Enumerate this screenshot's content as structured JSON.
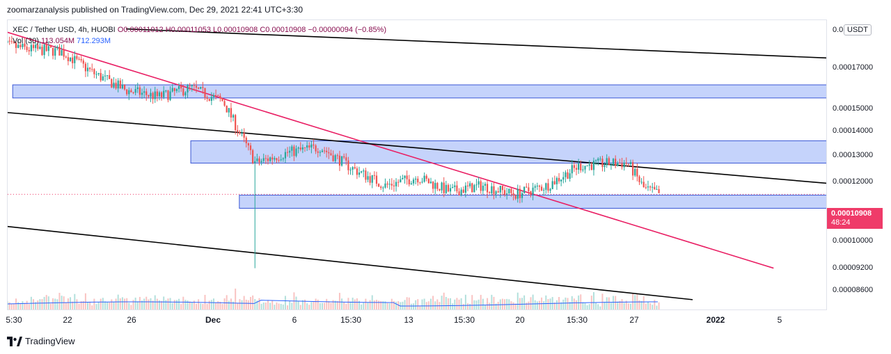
{
  "header": {
    "publisher_text": "zoomarzanalysis published on TradingView.com, Dec 29, 2021 22:41 UTC+3:30"
  },
  "legend": {
    "symbol": "XEC / Tether USD, 4h, HUOBI",
    "open": "O0.00011012",
    "high": "H0.00011053",
    "low": "L0.00010908",
    "close": "C0.00010908",
    "change": "−0.00000094 (−0.85%)",
    "vol_label": "Vol (30)",
    "vol_value": "113.054M",
    "vol_ma": "712.293M"
  },
  "price_axis": {
    "currency": "USDT",
    "labels": [
      "0.00017000",
      "0.00015000",
      "0.00014000",
      "0.00013000",
      "0.00012000",
      "0.00010000",
      "0.00009200",
      "0.00008600"
    ],
    "top_label": "0.0"
  },
  "last_price": {
    "value": "0.00010908",
    "countdown": "48:24"
  },
  "time_axis": {
    "labels": [
      "5:30",
      "22",
      "26",
      "Dec",
      "6",
      "15:30",
      "13",
      "15:30",
      "20",
      "15:30",
      "27",
      "2022",
      "5"
    ]
  },
  "footer": {
    "brand": "TradingView"
  },
  "colors": {
    "up": "#26a69a",
    "down": "#ef5350",
    "wick": "#131722",
    "zone_fill": "#c5d3fb",
    "zone_border": "#3a57d6",
    "trend_pink": "#e91e63",
    "trend_black": "#000000",
    "volume_ma": "#2962ff",
    "last_price_box": "#ef3b69"
  },
  "chart_data": {
    "type": "candlestick",
    "symbol": "XEC / Tether USD",
    "timeframe": "4h",
    "exchange": "HUOBI",
    "x_ticks": [
      "22",
      "26",
      "Dec",
      "6",
      "15:30",
      "13",
      "15:30",
      "20",
      "15:30",
      "27",
      "2022",
      "5"
    ],
    "y_scale": "log",
    "close_path": [
      {
        "date": "2021-11-18",
        "close": 0.000173
      },
      {
        "date": "2021-11-20",
        "close": 0.00017
      },
      {
        "date": "2021-11-22",
        "close": 0.000169
      },
      {
        "date": "2021-11-24",
        "close": 0.000158
      },
      {
        "date": "2021-11-26",
        "close": 0.00015
      },
      {
        "date": "2021-11-28",
        "close": 0.000147
      },
      {
        "date": "2021-11-30",
        "close": 0.000151
      },
      {
        "date": "2021-12-02",
        "close": 0.000145
      },
      {
        "date": "2021-12-04",
        "close": 0.00012
      },
      {
        "date": "2021-12-06",
        "close": 0.000124
      },
      {
        "date": "2021-12-08",
        "close": 0.000126
      },
      {
        "date": "2021-12-10",
        "close": 0.000118
      },
      {
        "date": "2021-12-12",
        "close": 0.000112
      },
      {
        "date": "2021-12-14",
        "close": 0.000115
      },
      {
        "date": "2021-12-16",
        "close": 0.00011
      },
      {
        "date": "2021-12-18",
        "close": 0.000112
      },
      {
        "date": "2021-12-20",
        "close": 0.000109
      },
      {
        "date": "2021-12-22",
        "close": 0.000112
      },
      {
        "date": "2021-12-24",
        "close": 0.000119
      },
      {
        "date": "2021-12-26",
        "close": 0.00012
      },
      {
        "date": "2021-12-27",
        "close": 0.00012
      },
      {
        "date": "2021-12-28",
        "close": 0.000111
      },
      {
        "date": "2021-12-29",
        "close": 0.00010908
      }
    ],
    "extreme_lows": [
      {
        "date": "2021-12-04",
        "low": 8.7e-05
      }
    ],
    "zones": [
      {
        "from": "2021-11-19",
        "to": "2022-01-10",
        "low": 0.0001465,
        "high": 0.0001525
      },
      {
        "from": "2021-11-30",
        "to": "2022-01-10",
        "low": 0.00012,
        "high": 0.0001285
      },
      {
        "from": "2021-12-03",
        "to": "2022-01-10",
        "low": 0.0001045,
        "high": 0.0001088
      }
    ],
    "trendlines": [
      {
        "color": "pink",
        "from": {
          "date": "2021-11-18",
          "price": 0.000181
        },
        "to": {
          "date": "2022-01-05",
          "price": 8.7e-05
        }
      },
      {
        "color": "black",
        "from": {
          "date": "2021-11-18",
          "price": 0.0001405
        },
        "to": {
          "date": "2022-01-10",
          "price": 0.000112
        }
      },
      {
        "color": "black",
        "from": {
          "date": "2021-11-26",
          "price": 0.000181
        },
        "to": {
          "date": "2022-01-10",
          "price": 0.000165
        }
      },
      {
        "color": "black",
        "from": {
          "date": "2021-11-18",
          "price": 9.92e-05
        },
        "to": {
          "date": "2021-12-31",
          "price": 7.9e-05
        }
      }
    ],
    "last_price": 0.00010908
  }
}
